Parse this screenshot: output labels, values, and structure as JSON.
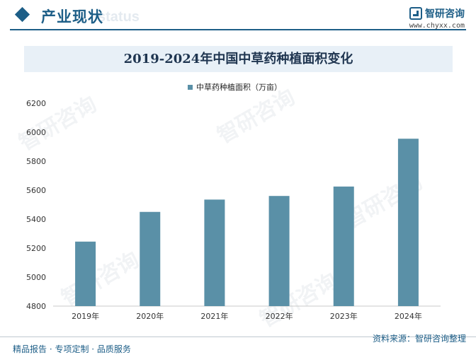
{
  "header": {
    "section_title": "产业现状",
    "section_watermark": "status",
    "brand_name": "智研咨询",
    "brand_url": "www.chyxx.com"
  },
  "watermark_text": "智研咨询",
  "chart_data": {
    "type": "bar",
    "title": "2019-2024年中国中草药种植面积变化",
    "categories": [
      "2019年",
      "2020年",
      "2021年",
      "2022年",
      "2023年",
      "2024年"
    ],
    "series": [
      {
        "name": "中草药种植面积（万亩）",
        "values": [
          5245,
          5450,
          5535,
          5560,
          5625,
          5955
        ],
        "color": "#5a90a7"
      }
    ],
    "yticks": [
      4800,
      5000,
      5200,
      5400,
      5600,
      5800,
      6000,
      6200
    ],
    "ylim": [
      4800,
      6200
    ],
    "legend_position": "top-center",
    "grid": false
  },
  "footer": {
    "left": "精品报告 · 专项定制 · 品质服务",
    "right": "资料来源：智研咨询整理"
  }
}
